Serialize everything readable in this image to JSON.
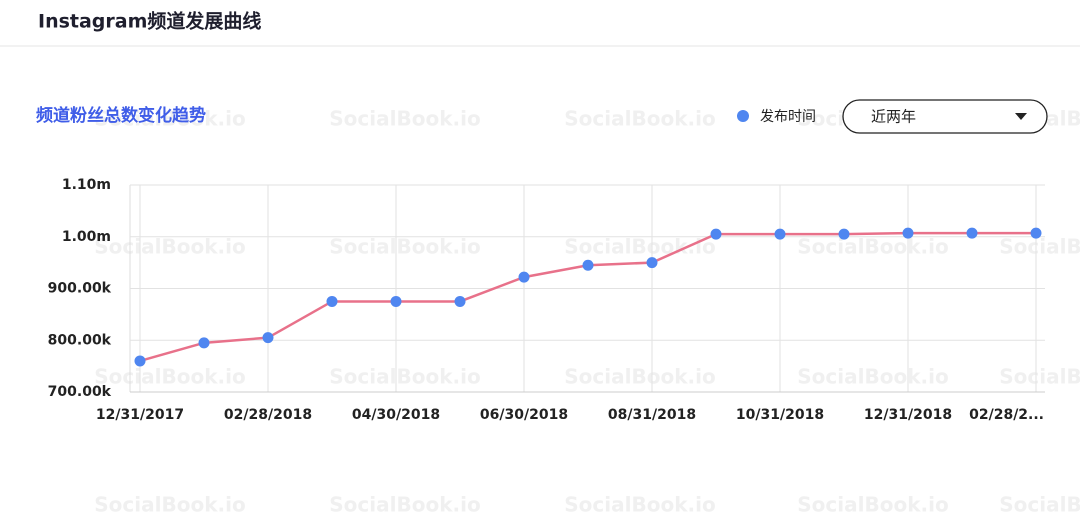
{
  "header": {
    "title": "Instagram频道发展曲线"
  },
  "watermark": "SocialBook.io",
  "controls": {
    "range": "近两年"
  },
  "chart_data": {
    "type": "line",
    "title": "频道粉丝总数变化趋势",
    "categories": [
      "12/31/2017",
      null,
      "02/28/2018",
      null,
      "04/30/2018",
      null,
      "06/30/2018",
      null,
      "08/31/2018",
      null,
      "10/31/2018",
      null,
      "12/31/2018",
      null,
      "02/28/2..."
    ],
    "series": [
      {
        "name": "发布时间",
        "color": "#4f86f0",
        "line_color": "#e8718a",
        "values": [
          760000,
          795000,
          805000,
          875000,
          875000,
          875000,
          922000,
          945000,
          950000,
          1005000,
          1005000,
          1005000,
          1007000,
          1007000,
          1007000
        ]
      }
    ],
    "ylim": [
      700000,
      1100000
    ],
    "yticks": [
      {
        "value": 700000,
        "label": "700.00k"
      },
      {
        "value": 800000,
        "label": "800.00k"
      },
      {
        "value": 900000,
        "label": "900.00k"
      },
      {
        "value": 1000000,
        "label": "1.00m"
      },
      {
        "value": 1100000,
        "label": "1.10m"
      }
    ],
    "grid": true
  }
}
